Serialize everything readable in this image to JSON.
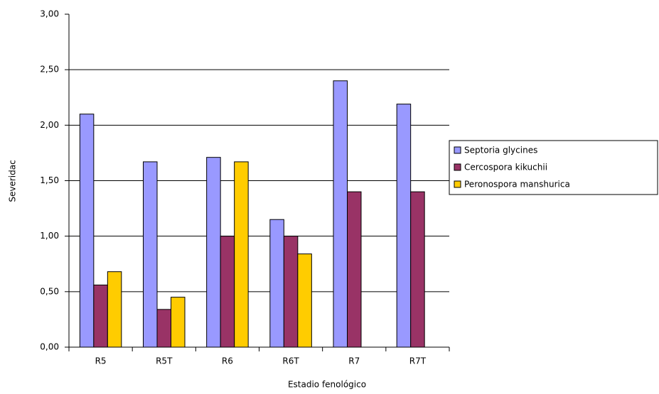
{
  "chart_data": {
    "type": "bar",
    "x_label": "Estadio fenológico",
    "y_label": "Severidac",
    "categories": [
      "R5",
      "R5T",
      "R6",
      "R6T",
      "R7",
      "R7T"
    ],
    "series": [
      {
        "name": "Septoria glycines",
        "color": "#9999ff",
        "values": [
          2.1,
          1.67,
          1.71,
          1.15,
          2.4,
          2.19
        ]
      },
      {
        "name": "Cercospora kikuchii",
        "color": "#993366",
        "values": [
          0.56,
          0.34,
          1.0,
          1.0,
          1.4,
          1.4
        ]
      },
      {
        "name": "Peronospora manshurica",
        "color": "#ffcc00",
        "values": [
          0.68,
          0.45,
          1.67,
          0.84,
          null,
          null
        ]
      }
    ],
    "ylim": [
      0,
      3
    ],
    "yticks": [
      {
        "value": 0,
        "label": "0,00"
      },
      {
        "value": 0.5,
        "label": "0,50"
      },
      {
        "value": 1,
        "label": "1,00"
      },
      {
        "value": 1.5,
        "label": "1,50"
      },
      {
        "value": 2,
        "label": "2,00"
      },
      {
        "value": 2.5,
        "label": "2,50"
      },
      {
        "value": 3,
        "label": "3,00"
      }
    ],
    "grid": true,
    "legend": "right"
  }
}
